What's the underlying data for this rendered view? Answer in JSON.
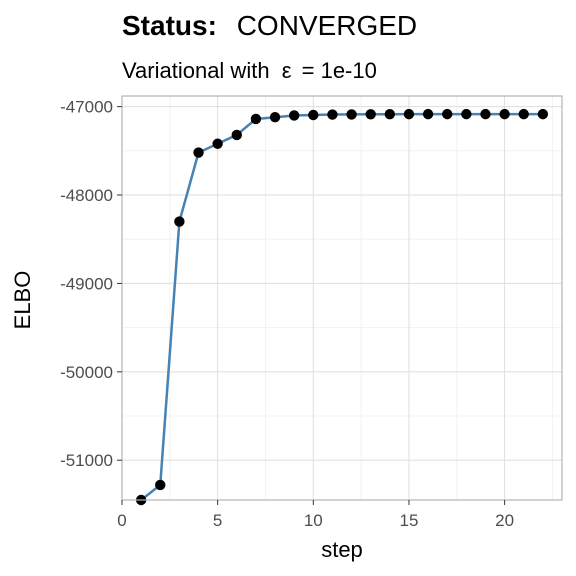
{
  "chart_data": {
    "type": "line",
    "title_label": "Status:",
    "title_value": "CONVERGED",
    "subtitle_prefix": "Variational with",
    "subtitle_symbol": "ε",
    "subtitle_suffix": "= 1e-10",
    "xlabel": "step",
    "ylabel": "ELBO",
    "xlim": [
      0,
      23
    ],
    "ylim": [
      -51450,
      -46880
    ],
    "xticks": [
      0,
      5,
      10,
      15,
      20
    ],
    "yticks": [
      -51000,
      -50000,
      -49000,
      -48000,
      -47000
    ],
    "grid": true,
    "legend": "none",
    "series": [
      {
        "x": [
          1,
          2,
          3,
          4,
          5,
          6,
          7,
          8,
          9,
          10,
          11,
          12,
          13,
          14,
          15,
          16,
          17,
          18,
          19,
          20,
          21,
          22
        ],
        "y": [
          -51450,
          -51280,
          -48300,
          -47520,
          -47420,
          -47320,
          -47140,
          -47120,
          -47100,
          -47095,
          -47090,
          -47088,
          -47087,
          -47086,
          -47085,
          -47085,
          -47085,
          -47085,
          -47085,
          -47085,
          -47085,
          -47085
        ]
      }
    ],
    "line_color": "#4682B4",
    "point_color": "#000000",
    "panel_border_color": "#b3b3b3",
    "grid_major_color": "#dedede",
    "grid_minor_color": "#efefef"
  }
}
